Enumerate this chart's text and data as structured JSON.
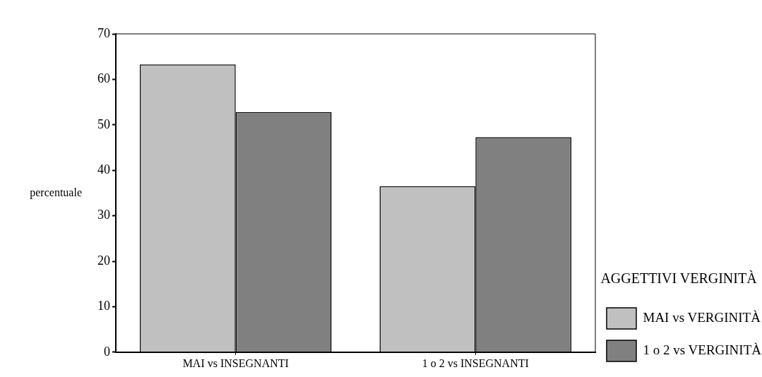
{
  "chart_data": {
    "type": "bar",
    "ylabel": "percentuale",
    "legend_title": "AGGETTIVI VERGINITÀ",
    "categories": [
      "MAI vs INSEGNANTI",
      "1 o 2 vs INSEGNANTI"
    ],
    "series": [
      {
        "name": "MAI vs VERGINITÀ",
        "color": "#c0c0c0",
        "values": [
          63.3,
          36.5
        ]
      },
      {
        "name": "1 o 2 vs VERGINITÀ",
        "color": "#808080",
        "values": [
          52.8,
          47.3
        ]
      }
    ],
    "ylim": [
      0,
      70
    ],
    "yticks": [
      0,
      10,
      20,
      30,
      40,
      50,
      60,
      70
    ],
    "grid": false,
    "legend": "right"
  }
}
